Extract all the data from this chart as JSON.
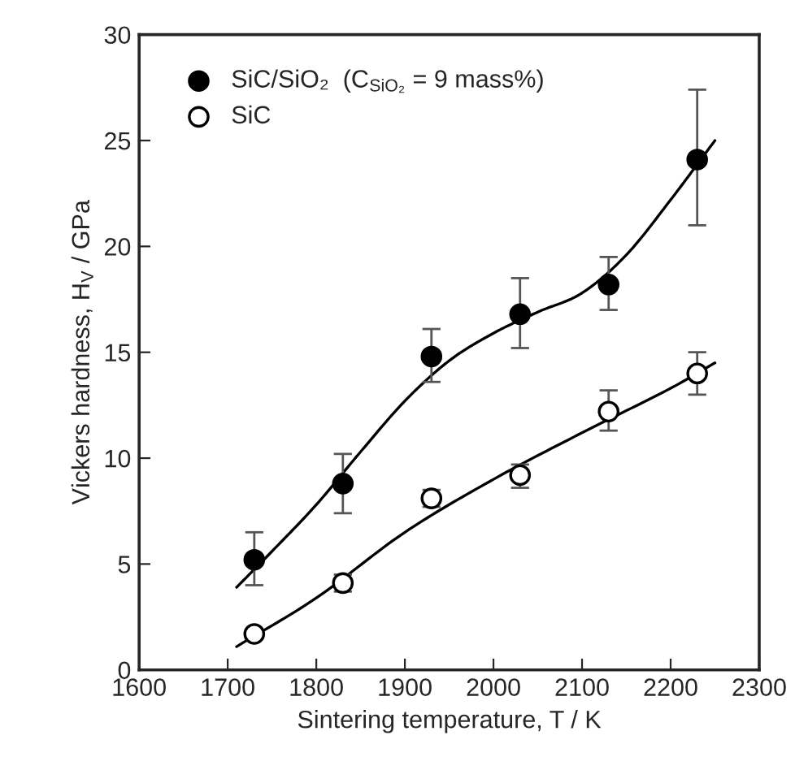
{
  "chart_data": {
    "type": "scatter",
    "xlabel": "Sintering temperature, T / K",
    "ylabel": "Vickers hardness, H$_{V}$ / GPa",
    "xlim": [
      1600,
      2300
    ],
    "xticks": [
      1600,
      1700,
      1800,
      1900,
      2000,
      2100,
      2200,
      2300
    ],
    "ylim": [
      0,
      30
    ],
    "yticks": [
      0,
      5,
      10,
      15,
      20,
      25,
      30
    ],
    "grid": false,
    "legend": "top left",
    "marker": "circle",
    "series": [
      {
        "name": "SiC/SiO₂  (C$_{SiO₂}$ = 9 mass%)",
        "color": "#000000",
        "x": [
          1730,
          1830,
          1930,
          2030,
          2130,
          2230
        ],
        "values": [
          5.2,
          8.8,
          14.8,
          16.8,
          18.2,
          24.1
        ],
        "errors": [
          [
            4.0,
            6.5
          ],
          [
            7.4,
            10.2
          ],
          [
            13.6,
            16.1
          ],
          [
            15.2,
            18.5
          ],
          [
            17.0,
            19.5
          ],
          [
            21.0,
            27.4
          ]
        ]
      },
      {
        "name": "SiC",
        "color": "#ffffff",
        "x": [
          1730,
          1830,
          1930,
          2030,
          2130,
          2230
        ],
        "values": [
          1.7,
          4.1,
          8.1,
          9.2,
          12.2,
          14.0
        ],
        "errors": [
          null,
          [
            3.7,
            4.5
          ],
          [
            7.7,
            8.5
          ],
          [
            8.6,
            9.7
          ],
          [
            11.3,
            13.2
          ],
          [
            13.0,
            15.0
          ]
        ]
      },
      {
        "type": "line",
        "marker": "none",
        "color": "#000000",
        "x": [
          1710,
          1750,
          1800,
          1850,
          1900,
          1950,
          2000,
          2050,
          2100,
          2150,
          2200,
          2250
        ],
        "values": [
          3.9,
          5.6,
          7.8,
          10.3,
          12.7,
          14.6,
          15.9,
          16.9,
          17.8,
          19.6,
          22.2,
          25.0
        ]
      },
      {
        "type": "line",
        "marker": "none",
        "color": "#000000",
        "x": [
          1710,
          1800,
          1900,
          2000,
          2100,
          2200,
          2250
        ],
        "values": [
          1.1,
          3.4,
          6.5,
          9.0,
          11.2,
          13.3,
          14.5
        ]
      }
    ]
  }
}
